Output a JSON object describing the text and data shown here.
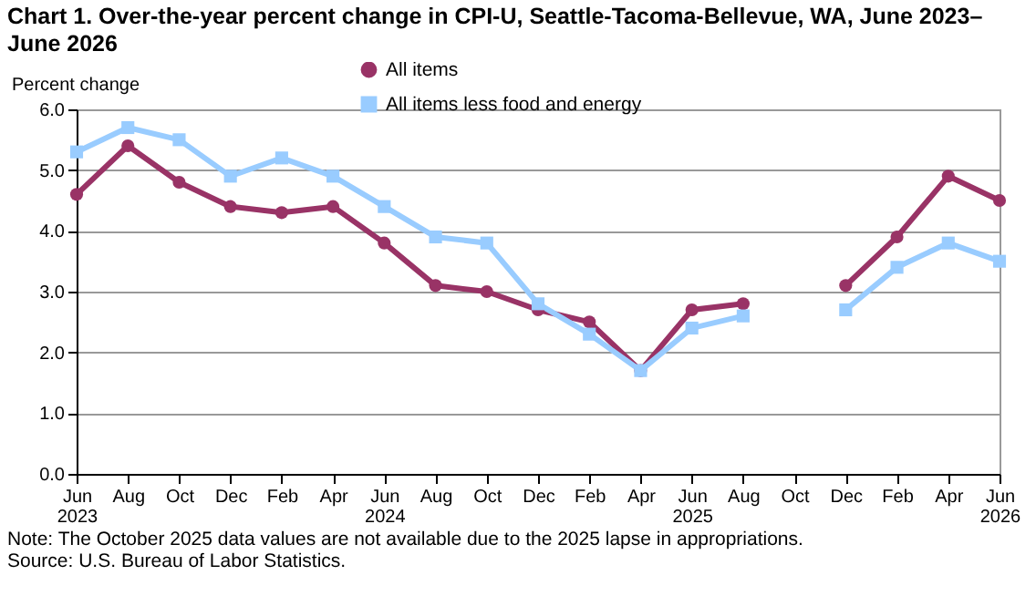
{
  "chart_data": {
    "type": "line",
    "title": "Chart 1. Over-the-year percent change in CPI-U, Seattle-Tacoma-Bellevue, WA, June 2023–June 2026",
    "ylabel": "Percent change",
    "categories": [
      "Jun\n2023",
      "Aug",
      "Oct",
      "Dec",
      "Feb",
      "Apr",
      "Jun\n2024",
      "Aug",
      "Oct",
      "Dec",
      "Feb",
      "Apr",
      "Jun\n2025",
      "Aug",
      "Oct",
      "Dec",
      "Feb",
      "Apr",
      "Jun\n2026"
    ],
    "series": [
      {
        "name": "All items",
        "color": "#993366",
        "marker": "circle",
        "values": [
          4.6,
          5.4,
          4.8,
          4.4,
          4.3,
          4.4,
          3.8,
          3.1,
          3.0,
          2.7,
          2.5,
          1.7,
          2.7,
          2.8,
          null,
          3.1,
          3.9,
          4.9,
          4.5
        ]
      },
      {
        "name": "All items less food and energy",
        "color": "#99ccff",
        "marker": "square",
        "values": [
          5.3,
          5.7,
          5.5,
          4.9,
          5.2,
          4.9,
          4.4,
          3.9,
          3.8,
          2.8,
          2.3,
          1.7,
          2.4,
          2.6,
          null,
          2.7,
          3.4,
          3.8,
          3.5
        ]
      }
    ],
    "ylim": [
      0,
      6
    ],
    "yticks": [
      {
        "value": 0,
        "label": "0.0"
      },
      {
        "value": 1,
        "label": "1.0"
      },
      {
        "value": 2,
        "label": "2.0"
      },
      {
        "value": 3,
        "label": "3.0"
      },
      {
        "value": 4,
        "label": "4.0"
      },
      {
        "value": 5,
        "label": "5.0"
      },
      {
        "value": 6,
        "label": "6.0"
      }
    ],
    "grid": "y",
    "legend": "top",
    "annotations": [
      "Note: The October 2025 data values are not available due to the 2025 lapse in appropriations.",
      "Source: U.S. Bureau of Labor Statistics."
    ]
  }
}
